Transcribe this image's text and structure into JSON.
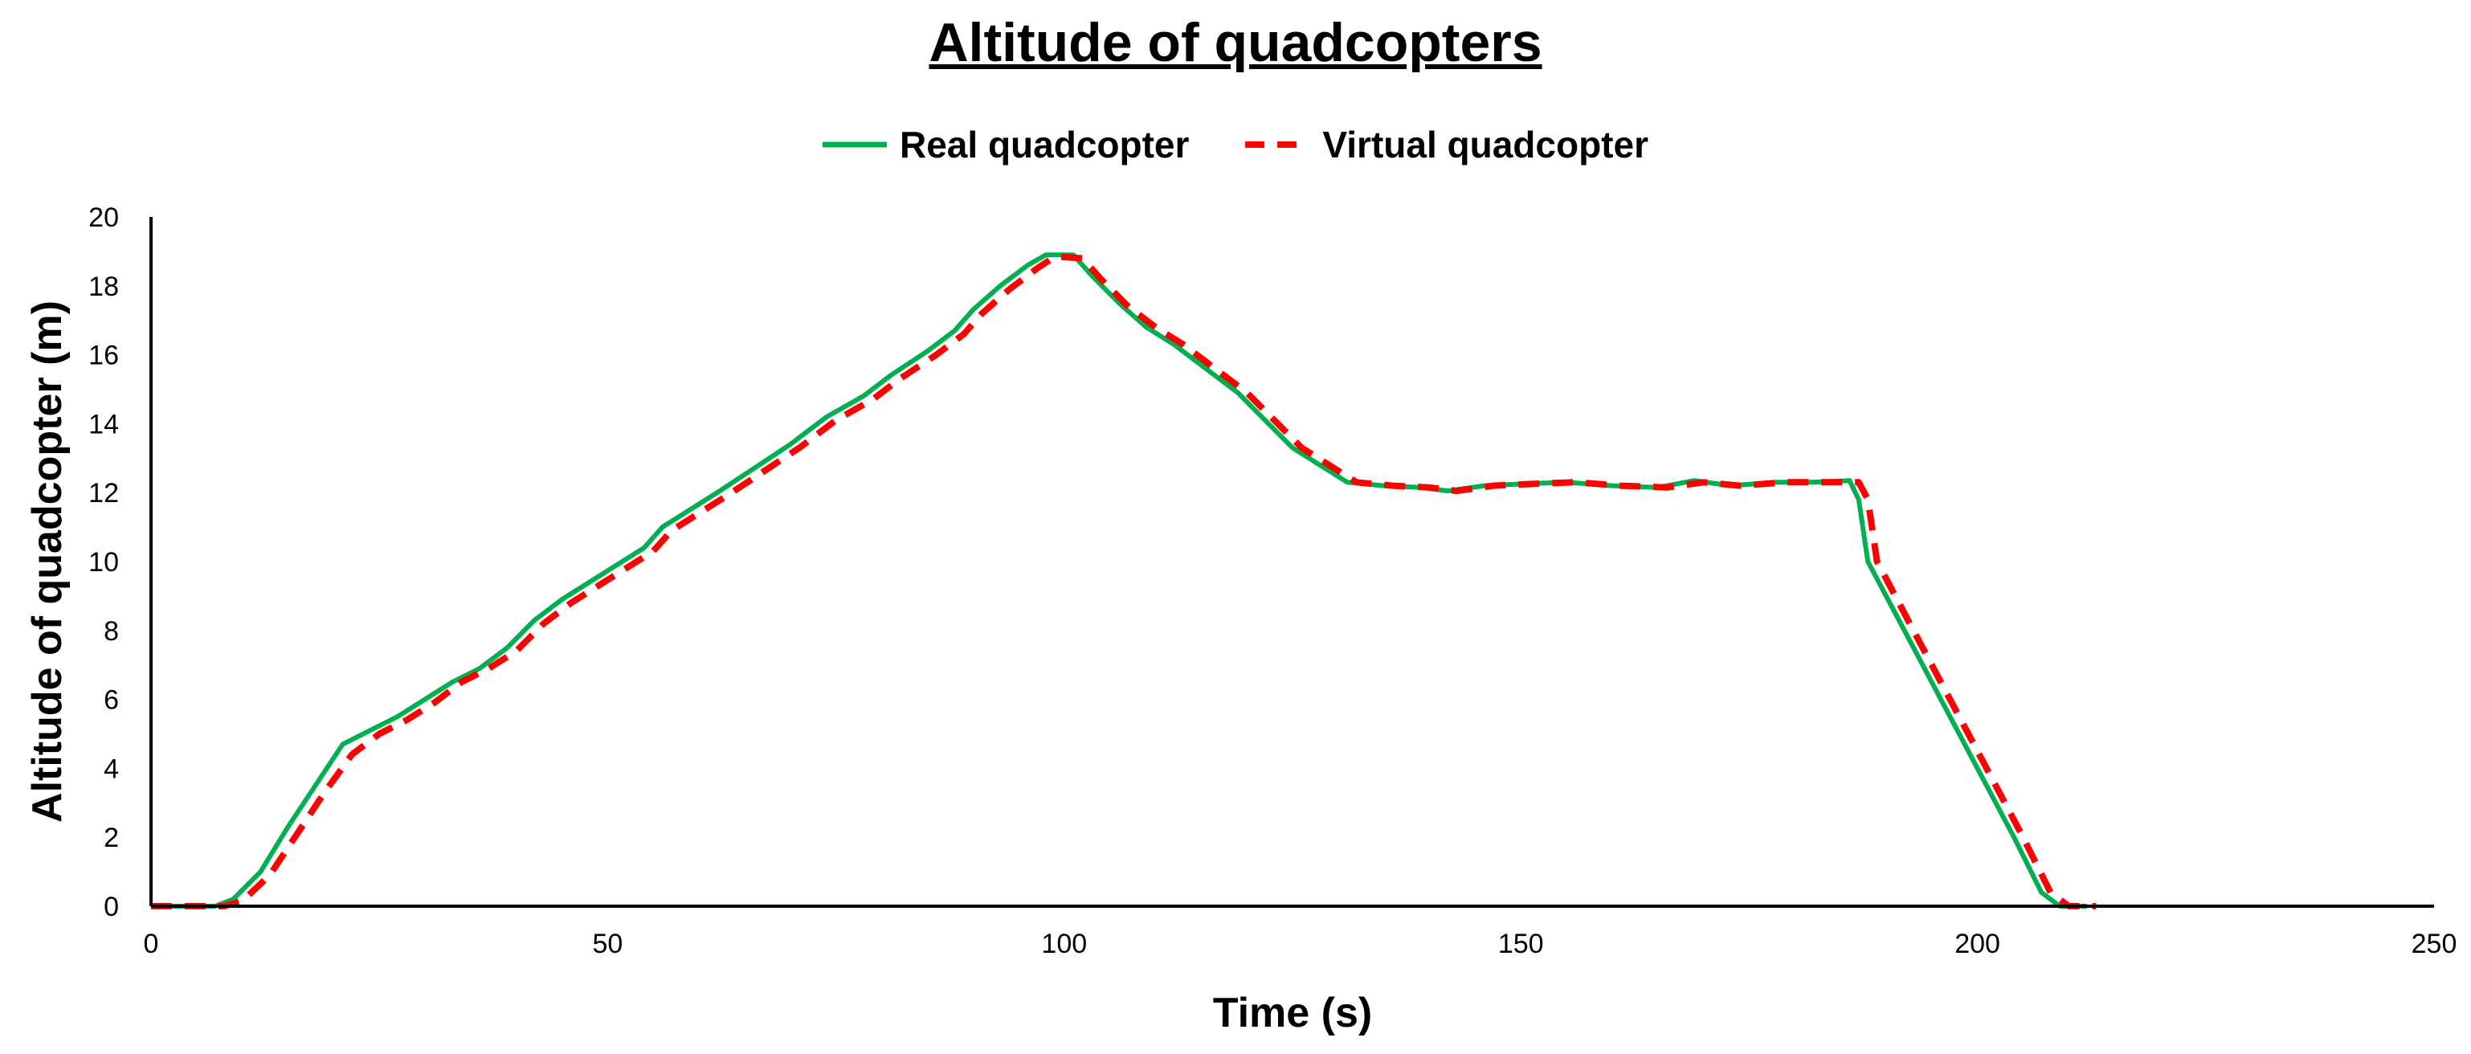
{
  "chart_data": {
    "type": "line",
    "title": "Altitude of quadcopters",
    "xlabel": "Time (s)",
    "ylabel": "Altitude of quadcopter (m)",
    "xlim": [
      0,
      250
    ],
    "ylim": [
      0,
      20
    ],
    "x_ticks": [
      "0",
      "50",
      "100",
      "150",
      "200",
      "250"
    ],
    "y_ticks": [
      "0",
      "2",
      "4",
      "6",
      "8",
      "10",
      "12",
      "14",
      "16",
      "18",
      "20"
    ],
    "grid": false,
    "legend_position": "top-center",
    "series": [
      {
        "name": "Real quadcopter",
        "color": "#00b050",
        "style": "solid",
        "points": [
          [
            0,
            0
          ],
          [
            7,
            0
          ],
          [
            9,
            0.2
          ],
          [
            12,
            1.0
          ],
          [
            15,
            2.3
          ],
          [
            18,
            3.5
          ],
          [
            21,
            4.7
          ],
          [
            24,
            5.1
          ],
          [
            27,
            5.5
          ],
          [
            30,
            6.0
          ],
          [
            33,
            6.5
          ],
          [
            36,
            6.9
          ],
          [
            39,
            7.5
          ],
          [
            42,
            8.3
          ],
          [
            45,
            8.9
          ],
          [
            48,
            9.4
          ],
          [
            51,
            9.9
          ],
          [
            54,
            10.4
          ],
          [
            56,
            11.0
          ],
          [
            59,
            11.5
          ],
          [
            62,
            12.0
          ],
          [
            66,
            12.7
          ],
          [
            70,
            13.4
          ],
          [
            74,
            14.2
          ],
          [
            78,
            14.8
          ],
          [
            81,
            15.4
          ],
          [
            85,
            16.1
          ],
          [
            88,
            16.7
          ],
          [
            90,
            17.3
          ],
          [
            93,
            18.0
          ],
          [
            96,
            18.6
          ],
          [
            98,
            18.9
          ],
          [
            101,
            18.9
          ],
          [
            103,
            18.3
          ],
          [
            106,
            17.5
          ],
          [
            109,
            16.8
          ],
          [
            112,
            16.3
          ],
          [
            115,
            15.7
          ],
          [
            119,
            14.9
          ],
          [
            122,
            14.1
          ],
          [
            125,
            13.3
          ],
          [
            128,
            12.8
          ],
          [
            131,
            12.3
          ],
          [
            135,
            12.2
          ],
          [
            139,
            12.15
          ],
          [
            142,
            12.05
          ],
          [
            146,
            12.2
          ],
          [
            150,
            12.25
          ],
          [
            155,
            12.3
          ],
          [
            160,
            12.2
          ],
          [
            165,
            12.15
          ],
          [
            169,
            12.35
          ],
          [
            173,
            12.2
          ],
          [
            178,
            12.3
          ],
          [
            182,
            12.3
          ],
          [
            186,
            12.35
          ],
          [
            187,
            11.8
          ],
          [
            188,
            10.0
          ],
          [
            192,
            8.0
          ],
          [
            196,
            6.0
          ],
          [
            200,
            4.0
          ],
          [
            204,
            2.0
          ],
          [
            207,
            0.4
          ],
          [
            209,
            0
          ],
          [
            212,
            0
          ]
        ]
      },
      {
        "name": "Virtual quadcopter",
        "color": "#ff0000",
        "style": "dashed",
        "points": [
          [
            0,
            0
          ],
          [
            8,
            0
          ],
          [
            10,
            0.15
          ],
          [
            13,
            0.9
          ],
          [
            16,
            2.1
          ],
          [
            19,
            3.3
          ],
          [
            22,
            4.4
          ],
          [
            25,
            5.0
          ],
          [
            28,
            5.4
          ],
          [
            31,
            5.9
          ],
          [
            34,
            6.5
          ],
          [
            37,
            6.9
          ],
          [
            40,
            7.4
          ],
          [
            43,
            8.2
          ],
          [
            46,
            8.8
          ],
          [
            49,
            9.3
          ],
          [
            52,
            9.8
          ],
          [
            55,
            10.3
          ],
          [
            57,
            10.9
          ],
          [
            60,
            11.4
          ],
          [
            63,
            11.9
          ],
          [
            67,
            12.6
          ],
          [
            71,
            13.3
          ],
          [
            75,
            14.1
          ],
          [
            79,
            14.7
          ],
          [
            82,
            15.3
          ],
          [
            86,
            16.0
          ],
          [
            89,
            16.6
          ],
          [
            91,
            17.2
          ],
          [
            94,
            17.9
          ],
          [
            97,
            18.5
          ],
          [
            99,
            18.85
          ],
          [
            102,
            18.8
          ],
          [
            104,
            18.2
          ],
          [
            107,
            17.4
          ],
          [
            110,
            16.8
          ],
          [
            113,
            16.3
          ],
          [
            116,
            15.7
          ],
          [
            120,
            14.9
          ],
          [
            123,
            14.1
          ],
          [
            126,
            13.3
          ],
          [
            129,
            12.8
          ],
          [
            132,
            12.3
          ],
          [
            136,
            12.2
          ],
          [
            140,
            12.15
          ],
          [
            143,
            12.05
          ],
          [
            147,
            12.2
          ],
          [
            151,
            12.25
          ],
          [
            156,
            12.3
          ],
          [
            161,
            12.2
          ],
          [
            166,
            12.15
          ],
          [
            170,
            12.3
          ],
          [
            174,
            12.2
          ],
          [
            179,
            12.3
          ],
          [
            183,
            12.3
          ],
          [
            187,
            12.3
          ],
          [
            188,
            11.8
          ],
          [
            189,
            10.0
          ],
          [
            193,
            8.0
          ],
          [
            197,
            6.0
          ],
          [
            201,
            4.0
          ],
          [
            205,
            2.0
          ],
          [
            208,
            0.4
          ],
          [
            210,
            0
          ],
          [
            213,
            0
          ]
        ]
      }
    ]
  }
}
